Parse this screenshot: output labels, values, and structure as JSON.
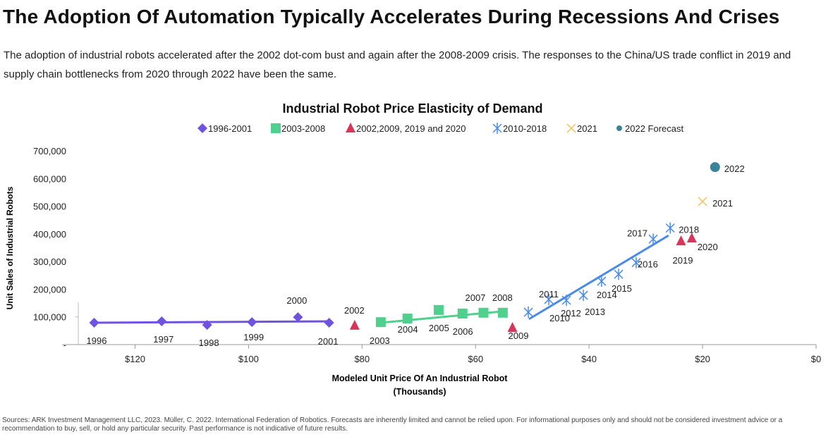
{
  "header": {
    "title": "The Adoption Of Automation Typically Accelerates During Recessions And Crises",
    "subtitle": "The adoption of industrial robots accelerated after the 2002 dot-com bust and again after the 2008-2009 crisis. The responses to the China/US trade conflict in 2019 and supply chain bottlenecks from 2020 through 2022 have been the same."
  },
  "footer": {
    "sources": "Sources: ARK Investment Management LLC, 2023. Müller, C. 2022. International Federation of Robotics. Forecasts are inherently limited and cannot be relied upon. For informational purposes only and should not be considered investment advice or a recommendation to buy, sell, or hold any particular security. Past performance is not indicative of future results."
  },
  "chart_data": {
    "type": "scatter",
    "title": "Industrial Robot Price Elasticity of Demand",
    "xlabel": "Modeled Unit Price Of An Industrial Robot",
    "xlabel2": "(Thousands)",
    "ylabel": "Unit Sales of Industrial Robots",
    "xlim": [
      130,
      0
    ],
    "ylim": [
      0,
      700000
    ],
    "x_reversed": true,
    "x_ticks": [
      {
        "v": 120,
        "label": "$120"
      },
      {
        "v": 100,
        "label": "$100"
      },
      {
        "v": 80,
        "label": "$80"
      },
      {
        "v": 60,
        "label": "$60"
      },
      {
        "v": 40,
        "label": "$40"
      },
      {
        "v": 20,
        "label": "$20"
      },
      {
        "v": 0,
        "label": "$0"
      }
    ],
    "y_ticks": [
      {
        "v": 0,
        "label": "-"
      },
      {
        "v": 100000,
        "label": "100,000"
      },
      {
        "v": 200000,
        "label": "200,000"
      },
      {
        "v": 300000,
        "label": "300,000"
      },
      {
        "v": 400000,
        "label": "400,000"
      },
      {
        "v": 500000,
        "label": "500,000"
      },
      {
        "v": 600000,
        "label": "600,000"
      },
      {
        "v": 700000,
        "label": "700,000"
      }
    ],
    "legend_position": "top",
    "series": [
      {
        "name": "1996-2001",
        "marker": "diamond",
        "color": "#6f52e0",
        "points": [
          {
            "label": "1996",
            "x": 127.2,
            "y": 79000
          },
          {
            "label": "1997",
            "x": 115.3,
            "y": 84000
          },
          {
            "label": "1998",
            "x": 107.3,
            "y": 71000
          },
          {
            "label": "1999",
            "x": 99.4,
            "y": 81000
          },
          {
            "label": "2000",
            "x": 91.3,
            "y": 99000
          },
          {
            "label": "2001",
            "x": 85.8,
            "y": 79000
          }
        ],
        "trend": [
          [
            127.4,
            79000
          ],
          [
            85.4,
            84000
          ]
        ]
      },
      {
        "name": "2003-2008",
        "marker": "square",
        "color": "#4fd08c",
        "points": [
          {
            "label": "2003",
            "x": 76.7,
            "y": 81000
          },
          {
            "label": "2004",
            "x": 72.0,
            "y": 94000
          },
          {
            "label": "2005",
            "x": 66.5,
            "y": 125000
          },
          {
            "label": "2006",
            "x": 62.3,
            "y": 112000
          },
          {
            "label": "2007",
            "x": 58.6,
            "y": 115000
          },
          {
            "label": "2008",
            "x": 55.2,
            "y": 115000
          }
        ],
        "trend": [
          [
            76.7,
            79000
          ],
          [
            55.2,
            120000
          ]
        ]
      },
      {
        "name": "2002,2009, 2019 and 2020",
        "marker": "triangle",
        "color": "#d9345a",
        "points": [
          {
            "label": "2002",
            "x": 81.3,
            "y": 69000
          },
          {
            "label": "2009",
            "x": 53.5,
            "y": 61000
          },
          {
            "label": "2019",
            "x": 23.8,
            "y": 374000
          },
          {
            "label": "2020",
            "x": 21.9,
            "y": 384000
          }
        ]
      },
      {
        "name": "2010-2018",
        "marker": "star",
        "color": "#4a8be8",
        "points": [
          {
            "label": "2010",
            "x": 50.7,
            "y": 117000
          },
          {
            "label": "2011",
            "x": 47.1,
            "y": 163000
          },
          {
            "label": "2012",
            "x": 44.0,
            "y": 160000
          },
          {
            "label": "2013",
            "x": 41.0,
            "y": 178000
          },
          {
            "label": "2014",
            "x": 37.8,
            "y": 229000
          },
          {
            "label": "2015",
            "x": 34.8,
            "y": 254000
          },
          {
            "label": "2016",
            "x": 31.7,
            "y": 296000
          },
          {
            "label": "2017",
            "x": 28.7,
            "y": 381000
          },
          {
            "label": "2018",
            "x": 25.7,
            "y": 421000
          }
        ],
        "trend": [
          [
            50.6,
            92000
          ],
          [
            26.0,
            394000
          ]
        ]
      },
      {
        "name": "2021",
        "marker": "x",
        "color": "#f2c25a",
        "points": [
          {
            "label": "2021",
            "x": 20.0,
            "y": 517000
          }
        ]
      },
      {
        "name": "2022 Forecast",
        "marker": "circle",
        "color": "#3a8499",
        "points": [
          {
            "label": "2022",
            "x": 17.8,
            "y": 641000
          }
        ]
      }
    ]
  }
}
